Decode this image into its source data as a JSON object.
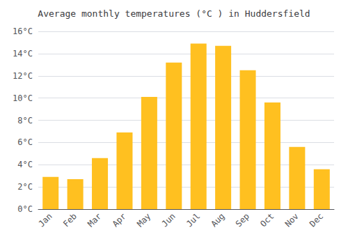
{
  "chart_data": {
    "type": "bar",
    "title": "Average monthly temperatures (°C ) in Huddersfield",
    "categories": [
      "Jan",
      "Feb",
      "Mar",
      "Apr",
      "May",
      "Jun",
      "Jul",
      "Aug",
      "Sep",
      "Oct",
      "Nov",
      "Dec"
    ],
    "values": [
      2.9,
      2.7,
      4.6,
      6.9,
      10.1,
      13.2,
      14.9,
      14.7,
      12.5,
      9.6,
      5.6,
      3.6
    ],
    "color": "#FFC020",
    "ylim": [
      0,
      16
    ],
    "yticks": [
      {
        "value": 0,
        "label": "0°C"
      },
      {
        "value": 2,
        "label": "2°C"
      },
      {
        "value": 4,
        "label": "4°C"
      },
      {
        "value": 6,
        "label": "6°C"
      },
      {
        "value": 8,
        "label": "8°C"
      },
      {
        "value": 10,
        "label": "10°C"
      },
      {
        "value": 12,
        "label": "12°C"
      },
      {
        "value": 14,
        "label": "14°C"
      },
      {
        "value": 16,
        "label": "16°C"
      }
    ],
    "grid": true
  }
}
